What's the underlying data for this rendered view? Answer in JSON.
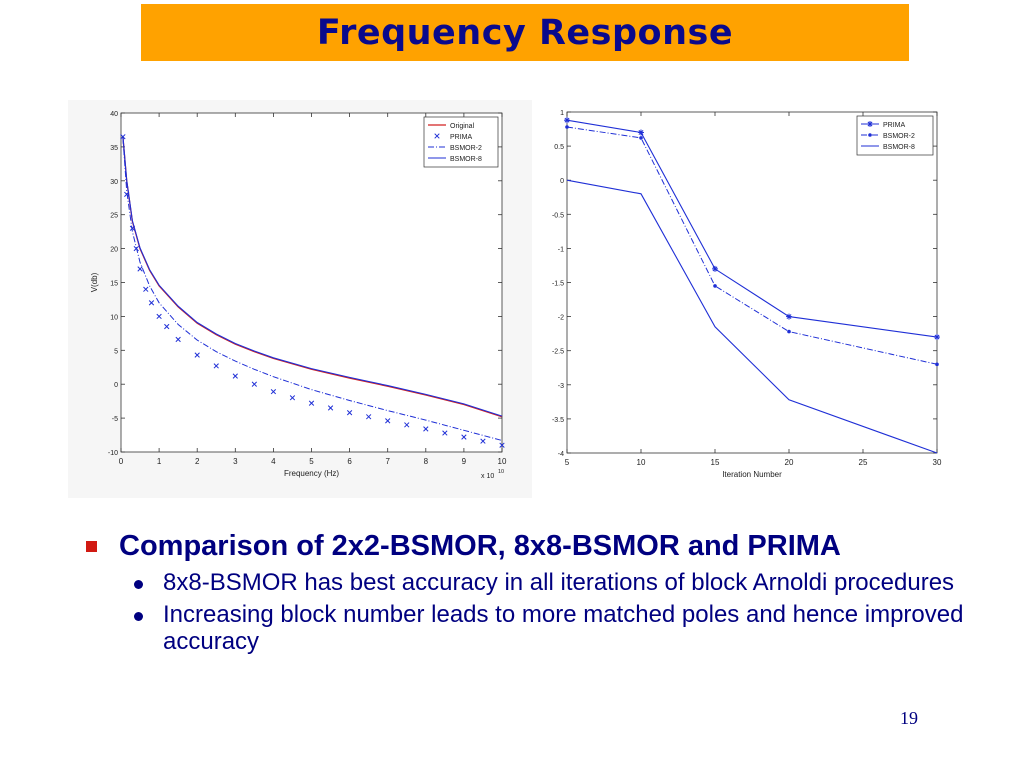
{
  "slide": {
    "title": "Frequency Response",
    "page_number": "19",
    "bullets": [
      {
        "text": "Comparison of 2x2-BSMOR, 8x8-BSMOR and PRIMA",
        "sub": [
          "8x8-BSMOR has best accuracy in all iterations of block Arnoldi procedures",
          "Increasing block number leads to more matched poles and hence improved accuracy"
        ]
      }
    ]
  },
  "colors": {
    "title_bar": "#ffa200",
    "title_text": "#0a0a8c",
    "text": "#000080",
    "bullet_square": "#d11a12",
    "original_line": "#d22020",
    "series_blue": "#1f2fd6"
  },
  "chart_data": [
    {
      "type": "line",
      "xlabel": "Frequency (Hz)",
      "ylabel": "V(db)",
      "x_multiplier": "x 10",
      "x_multiplier_exp": "10",
      "xlim": [
        0,
        10
      ],
      "ylim": [
        -10,
        40
      ],
      "xticks": [
        "0",
        "1",
        "2",
        "3",
        "4",
        "5",
        "6",
        "7",
        "8",
        "9",
        "10"
      ],
      "yticks": [
        "-10",
        "-5",
        "0",
        "5",
        "10",
        "15",
        "20",
        "25",
        "30",
        "35",
        "40"
      ],
      "legend": "top-right",
      "series": [
        {
          "name": "Original",
          "style": "solid-red",
          "x": [
            0.05,
            0.15,
            0.3,
            0.5,
            0.75,
            1,
            1.5,
            2,
            2.5,
            3,
            3.5,
            4,
            5,
            6,
            7,
            8,
            9,
            10
          ],
          "y": [
            36.5,
            30,
            24,
            20,
            16.8,
            14.5,
            11.4,
            9.0,
            7.3,
            5.9,
            4.8,
            3.8,
            2.2,
            0.9,
            -0.3,
            -1.6,
            -3.0,
            -4.8
          ]
        },
        {
          "name": "PRIMA",
          "style": "x-markers",
          "x": [
            0.05,
            0.15,
            0.3,
            0.4,
            0.5,
            0.65,
            0.8,
            1,
            1.2,
            1.5,
            2,
            2.5,
            3,
            3.5,
            4,
            4.5,
            5,
            5.5,
            6,
            6.5,
            7,
            7.5,
            8,
            8.5,
            9,
            9.5,
            10
          ],
          "y": [
            36.5,
            28,
            23,
            20,
            17,
            14,
            12,
            10,
            8.5,
            6.6,
            4.3,
            2.7,
            1.2,
            0.0,
            -1.1,
            -2.0,
            -2.8,
            -3.5,
            -4.2,
            -4.8,
            -5.4,
            -6.0,
            -6.6,
            -7.2,
            -7.8,
            -8.4,
            -9.0
          ]
        },
        {
          "name": "BSMOR-2",
          "style": "dashdot",
          "x": [
            0.05,
            0.15,
            0.3,
            0.5,
            0.75,
            1,
            1.5,
            2,
            2.5,
            3,
            3.5,
            4,
            5,
            6,
            7,
            8,
            9,
            10
          ],
          "y": [
            36.3,
            28.5,
            22.5,
            18,
            14.5,
            12,
            8.8,
            6.5,
            4.8,
            3.4,
            2.2,
            1.1,
            -0.8,
            -2.4,
            -3.9,
            -5.3,
            -6.8,
            -8.3
          ]
        },
        {
          "name": "BSMOR-8",
          "style": "solid-blue",
          "x": [
            0.05,
            0.15,
            0.3,
            0.5,
            0.75,
            1,
            1.5,
            2,
            2.5,
            3,
            3.5,
            4,
            5,
            6,
            7,
            8,
            9,
            10
          ],
          "y": [
            36.6,
            30.1,
            24.1,
            20.1,
            16.9,
            14.6,
            11.5,
            9.1,
            7.4,
            6.0,
            4.9,
            3.9,
            2.3,
            1.0,
            -0.2,
            -1.5,
            -2.9,
            -4.7
          ]
        }
      ]
    },
    {
      "type": "line",
      "xlabel": "Iteration Number",
      "ylabel": "",
      "xlim": [
        5,
        30
      ],
      "ylim": [
        -4,
        1
      ],
      "xticks": [
        "5",
        "10",
        "15",
        "20",
        "25",
        "30"
      ],
      "yticks": [
        "-4",
        "-3.5",
        "-3",
        "-2.5",
        "-2",
        "-1.5",
        "-1",
        "-0.5",
        "0",
        "0.5",
        "1"
      ],
      "legend": "top-right",
      "series": [
        {
          "name": "PRIMA",
          "style": "solid-star",
          "x": [
            5,
            10,
            15,
            20,
            30
          ],
          "y": [
            0.88,
            0.7,
            -1.3,
            -2.0,
            -2.3
          ]
        },
        {
          "name": "BSMOR-2",
          "style": "dashdot-dot",
          "x": [
            5,
            10,
            15,
            20,
            30
          ],
          "y": [
            0.78,
            0.62,
            -1.55,
            -2.22,
            -2.7
          ]
        },
        {
          "name": "BSMOR-8",
          "style": "solid",
          "x": [
            5,
            10,
            15,
            20,
            30
          ],
          "y": [
            0.0,
            -0.2,
            -2.15,
            -3.22,
            -4.0
          ]
        }
      ]
    }
  ]
}
